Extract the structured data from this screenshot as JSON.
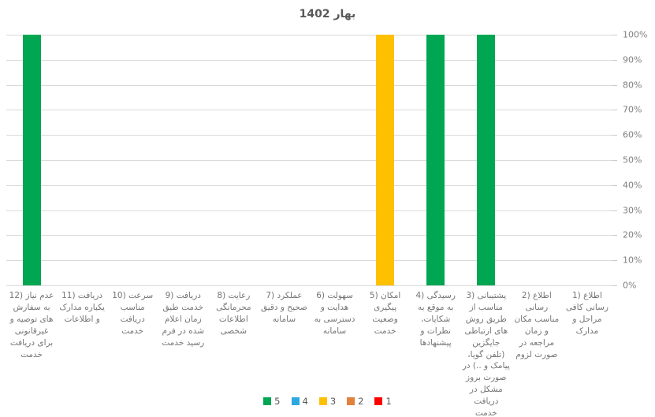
{
  "chart_data": {
    "type": "bar",
    "subtype": "stacked-column-percent",
    "title": "بهار 1402",
    "rtl": true,
    "grid": true,
    "categories": [
      "1) اطلاع رسانی کافی مراحل و مدارک",
      "2) اطلاع رسانی مناسب مکان و زمان مراجعه در صورت لزوم",
      "3) پشتیبانی مناسب از طریق روش های ارتباطی جایگزین (تلفن گویا، پیامک و ..) در صورت بروز مشکل در دریافت خدمت",
      "4) رسیدگی به موقع به شکایات، نظرات و پیشنهادها",
      "5) امکان پیگیری وضعیت خدمت",
      "6) سهولت هدایت و دسترسی به سامانه",
      "7) عملکرد صحیح و دقیق سامانه",
      "8) رعایت محرمانگی اطلاعات شخصی",
      "9) دریافت خدمت طبق زمان اعلام شده در فرم رسید خدمت",
      "10) سرعت مناسب دریافت خدمت",
      "11) دریافت یکباره مدارک و اطلاعات",
      "12) عدم نیاز به سفارش های توصیه و غیرقانونی برای دریافت خدمت"
    ],
    "series": [
      {
        "name": "5",
        "color": "#00A651",
        "values": [
          0,
          0,
          100,
          100,
          0,
          0,
          0,
          0,
          0,
          0,
          0,
          100
        ]
      },
      {
        "name": "4",
        "color": "#2EA8E0",
        "values": [
          0,
          0,
          0,
          0,
          0,
          0,
          0,
          0,
          0,
          0,
          0,
          0
        ]
      },
      {
        "name": "3",
        "color": "#FFC000",
        "values": [
          0,
          0,
          0,
          0,
          100,
          0,
          0,
          0,
          0,
          0,
          0,
          0
        ]
      },
      {
        "name": "2",
        "color": "#E0813D",
        "values": [
          0,
          0,
          0,
          0,
          0,
          0,
          0,
          0,
          0,
          0,
          0,
          0
        ]
      },
      {
        "name": "1",
        "color": "#FF0000",
        "values": [
          0,
          0,
          0,
          0,
          0,
          0,
          0,
          0,
          0,
          0,
          0,
          0
        ]
      }
    ],
    "y_axis": {
      "position": "right",
      "min": 0,
      "max": 100,
      "step": 10,
      "labels": [
        "0%",
        "10%",
        "20%",
        "30%",
        "40%",
        "50%",
        "60%",
        "70%",
        "80%",
        "90%",
        "100%"
      ]
    },
    "legend": {
      "position": "bottom",
      "items": [
        {
          "label": "5",
          "color": "#00A651"
        },
        {
          "label": "4",
          "color": "#2EA8E0"
        },
        {
          "label": "3",
          "color": "#FFC000"
        },
        {
          "label": "2",
          "color": "#E0813D"
        },
        {
          "label": "1",
          "color": "#FF0000"
        }
      ]
    }
  },
  "layout_colors": {
    "gridline": "#d9d9d9",
    "title_text": "#595959",
    "axis_text": "#7f7f7f",
    "category_text": "#757575",
    "background": "#ffffff"
  }
}
